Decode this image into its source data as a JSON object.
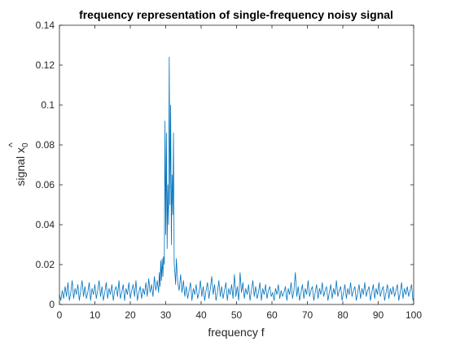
{
  "chart_data": {
    "type": "line",
    "title": "frequency representation of single-frequency noisy signal",
    "xlabel": "frequency f",
    "ylabel": "signal x̂₀",
    "ylabel_parts": {
      "text": "signal x",
      "hat": "^",
      "subscript": "0"
    },
    "xlim": [
      0,
      100
    ],
    "ylim": [
      0,
      0.14
    ],
    "xticks": [
      "0",
      "10",
      "20",
      "30",
      "40",
      "50",
      "60",
      "70",
      "80",
      "90",
      "100"
    ],
    "yticks": [
      "0",
      "0.02",
      "0.04",
      "0.06",
      "0.08",
      "0.1",
      "0.12",
      "0.14"
    ],
    "grid": false,
    "box": true,
    "line_color": "#0072BD",
    "series": [
      {
        "x": [
          0,
          0.4,
          0.8,
          1.2,
          1.6,
          2,
          2.4,
          2.8,
          3.2,
          3.6,
          4,
          4.4,
          4.8,
          5.2,
          5.6,
          6,
          6.4,
          6.8,
          7.2,
          7.6,
          8,
          8.4,
          8.8,
          9.2,
          9.6,
          10,
          10.4,
          10.8,
          11.2,
          11.6,
          12,
          12.4,
          12.8,
          13.2,
          13.6,
          14,
          14.4,
          14.8,
          15.2,
          15.6,
          16,
          16.4,
          16.8,
          17.2,
          17.6,
          18,
          18.4,
          18.8,
          19.2,
          19.6,
          20,
          20.4,
          20.8,
          21.2,
          21.6,
          22,
          22.4,
          22.8,
          23.2,
          23.6,
          24,
          24.4,
          24.8,
          25.2,
          25.6,
          26,
          26.4,
          26.8,
          27.2,
          27.6,
          28,
          28.2,
          28.4,
          28.6,
          28.8,
          29,
          29.2,
          29.4,
          29.6,
          29.8,
          30,
          30.2,
          30.4,
          30.6,
          30.8,
          31,
          31.2,
          31.4,
          31.6,
          31.8,
          32,
          32.2,
          32.4,
          32.6,
          32.8,
          33,
          33.4,
          33.8,
          34.2,
          34.6,
          35,
          35.4,
          35.8,
          36.2,
          36.6,
          37,
          37.4,
          37.8,
          38.2,
          38.6,
          39,
          39.4,
          39.8,
          40.2,
          40.6,
          41,
          41.4,
          41.8,
          42.2,
          42.6,
          43,
          43.4,
          43.8,
          44.2,
          44.6,
          45,
          45.4,
          45.8,
          46.2,
          46.6,
          47,
          47.4,
          47.8,
          48.2,
          48.6,
          49,
          49.4,
          49.8,
          50.2,
          50.6,
          51,
          51.4,
          51.8,
          52.2,
          52.6,
          53,
          53.4,
          53.8,
          54.2,
          54.6,
          55,
          55.4,
          55.8,
          56.2,
          56.6,
          57,
          57.4,
          57.8,
          58.2,
          58.6,
          59,
          59.4,
          59.8,
          60.2,
          60.6,
          61,
          61.4,
          61.8,
          62.2,
          62.6,
          63,
          63.4,
          63.8,
          64.2,
          64.6,
          65,
          65.4,
          65.8,
          66.2,
          66.6,
          67,
          67.4,
          67.8,
          68.2,
          68.6,
          69,
          69.4,
          69.8,
          70.2,
          70.6,
          71,
          71.4,
          71.8,
          72.2,
          72.6,
          73,
          73.4,
          73.8,
          74.2,
          74.6,
          75,
          75.4,
          75.8,
          76.2,
          76.6,
          77,
          77.4,
          77.8,
          78.2,
          78.6,
          79,
          79.4,
          79.8,
          80.2,
          80.6,
          81,
          81.4,
          81.8,
          82.2,
          82.6,
          83,
          83.4,
          83.8,
          84.2,
          84.6,
          85,
          85.4,
          85.8,
          86.2,
          86.6,
          87,
          87.4,
          87.8,
          88.2,
          88.6,
          89,
          89.4,
          89.8,
          90.2,
          90.6,
          91,
          91.4,
          91.8,
          92.2,
          92.6,
          93,
          93.4,
          93.8,
          94.2,
          94.6,
          95,
          95.4,
          95.8,
          96.2,
          96.6,
          97,
          97.4,
          97.8,
          98.2,
          98.6,
          99,
          99.4,
          99.8,
          100
        ],
        "values": [
          0.005,
          0.002,
          0.007,
          0.003,
          0.009,
          0.004,
          0.011,
          0.002,
          0.006,
          0.012,
          0.003,
          0.008,
          0.005,
          0.01,
          0.002,
          0.007,
          0.012,
          0.004,
          0.009,
          0.003,
          0.006,
          0.011,
          0.002,
          0.008,
          0.005,
          0.01,
          0.003,
          0.007,
          0.012,
          0.004,
          0.009,
          0.002,
          0.006,
          0.011,
          0.003,
          0.008,
          0.005,
          0.01,
          0.002,
          0.007,
          0.009,
          0.004,
          0.012,
          0.003,
          0.006,
          0.01,
          0.002,
          0.008,
          0.005,
          0.011,
          0.003,
          0.007,
          0.01,
          0.004,
          0.012,
          0.002,
          0.006,
          0.009,
          0.003,
          0.008,
          0.005,
          0.011,
          0.004,
          0.013,
          0.006,
          0.01,
          0.004,
          0.014,
          0.007,
          0.012,
          0.006,
          0.016,
          0.009,
          0.022,
          0.012,
          0.023,
          0.014,
          0.024,
          0.02,
          0.092,
          0.035,
          0.086,
          0.028,
          0.06,
          0.04,
          0.124,
          0.05,
          0.1,
          0.03,
          0.065,
          0.045,
          0.086,
          0.02,
          0.016,
          0.01,
          0.023,
          0.011,
          0.007,
          0.015,
          0.006,
          0.012,
          0.004,
          0.009,
          0.003,
          0.007,
          0.011,
          0.002,
          0.008,
          0.005,
          0.01,
          0.003,
          0.006,
          0.012,
          0.004,
          0.009,
          0.002,
          0.007,
          0.011,
          0.003,
          0.008,
          0.014,
          0.005,
          0.01,
          0.002,
          0.006,
          0.012,
          0.004,
          0.009,
          0.003,
          0.007,
          0.011,
          0.002,
          0.008,
          0.005,
          0.01,
          0.003,
          0.015,
          0.004,
          0.009,
          0.002,
          0.016,
          0.006,
          0.011,
          0.003,
          0.008,
          0.005,
          0.01,
          0.002,
          0.007,
          0.012,
          0.004,
          0.009,
          0.003,
          0.006,
          0.011,
          0.002,
          0.008,
          0.005,
          0.01,
          0.003,
          0.007,
          0.009,
          0.004,
          0.006,
          0.002,
          0.008,
          0.005,
          0.01,
          0.003,
          0.007,
          0.004,
          0.006,
          0.009,
          0.002,
          0.008,
          0.005,
          0.011,
          0.003,
          0.007,
          0.016,
          0.004,
          0.009,
          0.002,
          0.006,
          0.01,
          0.003,
          0.008,
          0.005,
          0.012,
          0.004,
          0.007,
          0.009,
          0.002,
          0.006,
          0.01,
          0.003,
          0.008,
          0.005,
          0.011,
          0.004,
          0.007,
          0.009,
          0.002,
          0.006,
          0.01,
          0.003,
          0.008,
          0.005,
          0.012,
          0.004,
          0.007,
          0.009,
          0.002,
          0.006,
          0.01,
          0.003,
          0.008,
          0.005,
          0.011,
          0.004,
          0.007,
          0.009,
          0.002,
          0.006,
          0.01,
          0.003,
          0.008,
          0.005,
          0.011,
          0.004,
          0.007,
          0.009,
          0.002,
          0.006,
          0.01,
          0.003,
          0.008,
          0.005,
          0.011,
          0.004,
          0.007,
          0.009,
          0.002,
          0.006,
          0.01,
          0.003,
          0.008,
          0.005,
          0.009,
          0.004,
          0.007,
          0.01,
          0.002,
          0.006,
          0.011,
          0.003,
          0.008,
          0.005,
          0.009,
          0.004,
          0.007,
          0.01,
          0.002,
          0.003
        ]
      }
    ]
  }
}
